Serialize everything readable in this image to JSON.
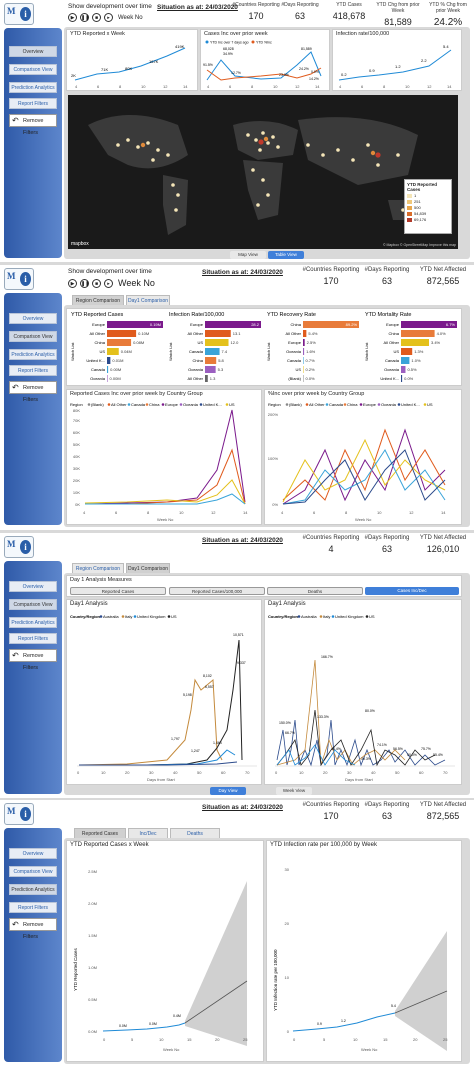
{
  "logo": {
    "text": "M",
    "icon_letter": "i"
  },
  "panel1": {
    "dev_label": "Show development over time",
    "week_label": "Week No",
    "situation": "Situation as at: 24/03/2020",
    "kpis": [
      {
        "label": "#Countries Reporting",
        "value": "170"
      },
      {
        "label": "#Days Reporting",
        "value": "63"
      },
      {
        "label": "YTD Cases",
        "value": "418,678"
      },
      {
        "label": "YTD Chg from prior Week",
        "value": "81,589"
      },
      {
        "label": "YTD % Chg from prior Week",
        "value": "24.2%"
      }
    ],
    "sidebar": [
      "Overview",
      "Comparison View",
      "Prediction Analytics",
      "Report Filters"
    ],
    "remove_filters": "Remove Filters",
    "chart1": {
      "title": "YTD Reported x Week",
      "labels": [
        "2K",
        "71K",
        "80K",
        "167K",
        "419K"
      ],
      "ticks": [
        "4",
        "6",
        "8",
        "10",
        "12",
        "14"
      ]
    },
    "chart2": {
      "title": "Cases Inc over prior week",
      "legend": [
        "YTD Inc over 7 days ago",
        "YTD %Inc"
      ],
      "labels": [
        "68,028",
        "81,589",
        "34.9%",
        "24.2%",
        "91.5%",
        "12.7%",
        "23.9%",
        "14.2%",
        "0.0%"
      ],
      "ticks": [
        "4",
        "6",
        "8",
        "10",
        "12",
        "14"
      ]
    },
    "chart3": {
      "title": "Infection rate/100,000",
      "labels": [
        "0.2",
        "0.9",
        "1.2",
        "2.2",
        "5.4"
      ],
      "ticks": [
        "4",
        "6",
        "8",
        "10",
        "12",
        "14"
      ]
    },
    "map_legend": {
      "title": "YTD Reported Cases",
      "items": [
        "1",
        "251",
        "500",
        "54,839",
        "69,176"
      ]
    },
    "mapbox": "mapbox",
    "copyright": "© Mapbox © OpenStreetMap Improve this map",
    "btn_map": "Map View",
    "btn_table": "Table View"
  },
  "panel2": {
    "dev_label": "Show development over time",
    "week_label": "Week No",
    "situation": "Situation as at: 24/03/2020",
    "kpis": [
      {
        "label": "#Countries Reporting",
        "value": "170"
      },
      {
        "label": "#Days Reporting",
        "value": "63"
      },
      {
        "label": "YTD Net Affected",
        "value": "872,565"
      }
    ],
    "tabs": [
      "Region Comparison",
      "Day1 Comparison"
    ],
    "sidebar": [
      "Overview",
      "Comparison View",
      "Prediction Analytics",
      "Report Filters"
    ],
    "remove_filters": "Remove Filters",
    "watch_list": "Watch List",
    "bars": [
      {
        "title": "YTD Reported Cases",
        "rows": [
          {
            "label": "Europe",
            "value": "0.19M",
            "frac": 1.0,
            "color": "#7b1a8c"
          },
          {
            "label": "All Other",
            "value": "0.10M",
            "frac": 0.52,
            "color": "#e05b1d"
          },
          {
            "label": "China",
            "value": "0.08M",
            "frac": 0.43,
            "color": "#e87b3a"
          },
          {
            "label": "US",
            "value": "0.04M",
            "frac": 0.21,
            "color": "#e4c11c"
          },
          {
            "label": "United K...",
            "value": "0.01M",
            "frac": 0.06,
            "color": "#2c4b8c"
          },
          {
            "label": "Canada",
            "value": "0.00M",
            "frac": 0.02,
            "color": "#3aa4d9"
          },
          {
            "label": "Oceania",
            "value": "0.00M",
            "frac": 0.01,
            "color": "#9b5fc0"
          }
        ]
      },
      {
        "title": "Infection Rate/100,000",
        "rows": [
          {
            "label": "Europe",
            "value": "28.2",
            "frac": 1.0,
            "color": "#7b1a8c"
          },
          {
            "label": "All Other",
            "value": "13.1",
            "frac": 0.46,
            "color": "#e05b1d"
          },
          {
            "label": "US",
            "value": "12.0",
            "frac": 0.42,
            "color": "#e4c11c"
          },
          {
            "label": "Canada",
            "value": "7.4",
            "frac": 0.26,
            "color": "#3aa4d9"
          },
          {
            "label": "China",
            "value": "5.8",
            "frac": 0.2,
            "color": "#e87b3a"
          },
          {
            "label": "Oceania",
            "value": "5.3",
            "frac": 0.19,
            "color": "#9b5fc0"
          },
          {
            "label": "All Other",
            "value": "1.3",
            "frac": 0.05,
            "color": "#666666"
          }
        ]
      },
      {
        "title": "YTD Recovery Rate",
        "rows": [
          {
            "label": "China",
            "value": "89.2%",
            "frac": 1.0,
            "color": "#e87b3a"
          },
          {
            "label": "All Other",
            "value": "5.4%",
            "frac": 0.06,
            "color": "#e05b1d"
          },
          {
            "label": "Europe",
            "value": "2.5%",
            "frac": 0.03,
            "color": "#7b1a8c"
          },
          {
            "label": "Oceania",
            "value": "1.6%",
            "frac": 0.02,
            "color": "#9b5fc0"
          },
          {
            "label": "Canada",
            "value": "0.7%",
            "frac": 0.01,
            "color": "#3aa4d9"
          },
          {
            "label": "US",
            "value": "0.2%",
            "frac": 0.005,
            "color": "#e4c11c"
          },
          {
            "label": "(Blank)",
            "value": "0.0%",
            "frac": 0.0,
            "color": "#888888"
          }
        ]
      },
      {
        "title": "YTD Mortality Rate",
        "rows": [
          {
            "label": "Europe",
            "value": "6.7%",
            "frac": 1.0,
            "color": "#7b1a8c"
          },
          {
            "label": "China",
            "value": "4.0%",
            "frac": 0.6,
            "color": "#e87b3a"
          },
          {
            "label": "All Other",
            "value": "3.4%",
            "frac": 0.5,
            "color": "#e4c11c"
          },
          {
            "label": "US",
            "value": "1.3%",
            "frac": 0.2,
            "color": "#e05b1d"
          },
          {
            "label": "Canada",
            "value": "1.0%",
            "frac": 0.15,
            "color": "#3aa4d9"
          },
          {
            "label": "Oceania",
            "value": "0.5%",
            "frac": 0.08,
            "color": "#9b5fc0"
          },
          {
            "label": "United K...",
            "value": "0.0%",
            "frac": 0.02,
            "color": "#2c4b8c"
          }
        ]
      }
    ],
    "line1_title": "Reported Cases Inc over prior week by Country Group",
    "line2_title": "%Inc over prior week by Country Group",
    "legend": [
      "Region",
      "(Blank)",
      "All Other",
      "Canada",
      "China",
      "Europe",
      "Oceania",
      "United K...",
      "US"
    ],
    "y1_ticks": [
      "0K",
      "10K",
      "20K",
      "30K",
      "40K",
      "50K",
      "60K",
      "70K",
      "80K"
    ],
    "y2_ticks": [
      "0%",
      "100%",
      "200%"
    ],
    "x_ticks": [
      "4",
      "6",
      "8",
      "10",
      "12",
      "14"
    ],
    "x_label": "Week No"
  },
  "panel3": {
    "situation": "Situation as at: 24/03/2020",
    "kpis": [
      {
        "label": "#Countries Reporting",
        "value": "4"
      },
      {
        "label": "#Days Reporting",
        "value": "63"
      },
      {
        "label": "YTD Net Affected",
        "value": "126,010"
      }
    ],
    "tabs": [
      "Region Comparison",
      "Day1 Comparison"
    ],
    "sidebar": [
      "Overview",
      "Comparison View",
      "Prediction Analytics",
      "Report Filters"
    ],
    "remove_filters": "Remove Filters",
    "measures_title": "Day 1 Analysis Measures",
    "measures": [
      "Reported Cases",
      "Reported Cases/100,000",
      "Deaths",
      "Cases Inc/Dec"
    ],
    "left_title": "Day1 Analysis",
    "right_title": "Day1 Analysis",
    "legend": [
      "Country/Region",
      "Australia",
      "Italy",
      "United Kingdom",
      "US"
    ],
    "left_labels": [
      "10,571",
      "9,337",
      "8,102",
      "6,557",
      "5,198",
      "1,797",
      "1,464",
      "1,247"
    ],
    "right_labels": [
      "166.7%",
      "150.0%",
      "133.3%",
      "80.0%",
      "66.7%",
      "44.4%",
      "74.1%",
      "75.7%",
      "56.5%",
      "50.0%",
      "55.4%",
      "39.3%"
    ],
    "x_ticks": [
      "0",
      "10",
      "20",
      "30",
      "40",
      "50",
      "60",
      "70"
    ],
    "x_label": "Days from Start",
    "btn_day": "Day View",
    "btn_week": "Week View"
  },
  "panel4": {
    "situation": "Situation as at: 24/03/2020",
    "kpis": [
      {
        "label": "#Countries Reporting",
        "value": "170"
      },
      {
        "label": "#Days Reporting",
        "value": "63"
      },
      {
        "label": "YTD Net Affected",
        "value": "872,565"
      }
    ],
    "tabs": [
      "Reported Cases",
      "Inc/Dec",
      "Deaths"
    ],
    "sidebar": [
      "Overview",
      "Comparison View",
      "Prediction Analytics",
      "Report Filters"
    ],
    "remove_filters": "Remove Filters",
    "left_title": "YTD Reported Cases x Week",
    "right_title": "YTD Infection rate per 100,000 by Week",
    "left_y_label": "YTD Reported Cases",
    "right_y_label": "YTD Infection rate per 100,000",
    "left_y_ticks": [
      "0.0M",
      "0.5M",
      "1.0M",
      "1.5M",
      "2.0M",
      "2.5M"
    ],
    "left_labels": [
      "0.0M",
      "0.0M",
      "0.4M"
    ],
    "right_y_ticks": [
      "0",
      "10",
      "20",
      "30"
    ],
    "right_labels": [
      "0.9",
      "1.2",
      "5.4"
    ],
    "left_x_ticks": [
      "0",
      "5",
      "10",
      "15",
      "20",
      "25"
    ],
    "right_x_ticks": [
      "0",
      "5",
      "10",
      "15",
      "20",
      "25"
    ],
    "x_label": "Week No"
  }
}
